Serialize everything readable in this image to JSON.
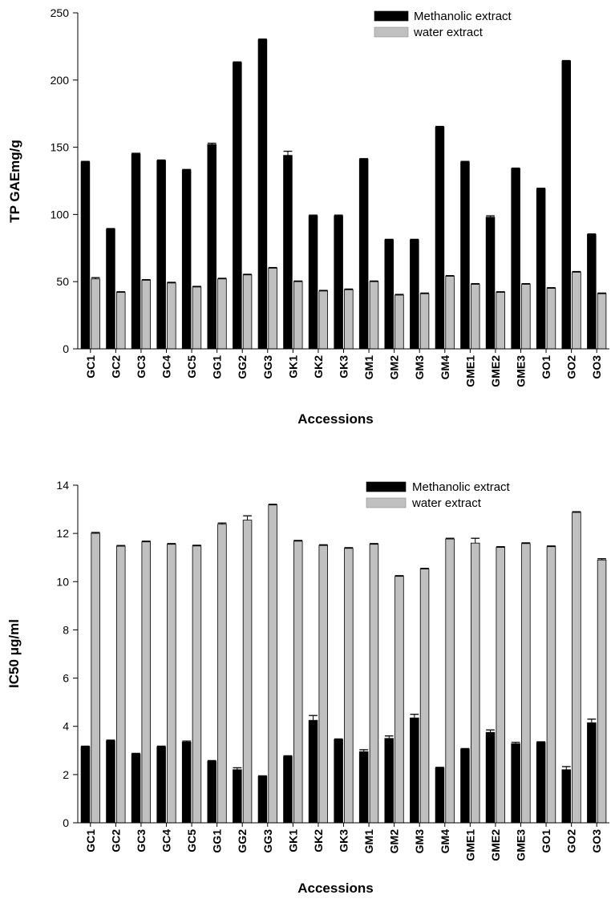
{
  "chart_data": [
    {
      "type": "bar",
      "xlabel": "Accessions",
      "ylabel": "TP GAEmg/g",
      "ylim": [
        0,
        250
      ],
      "yticks": [
        0,
        50,
        100,
        150,
        200,
        250
      ],
      "legend_position": "top-right",
      "categories": [
        "GC1",
        "GC2",
        "GC3",
        "GC4",
        "GC5",
        "GG1",
        "GG2",
        "GG3",
        "GK1",
        "GK2",
        "GK3",
        "GM1",
        "GM2",
        "GM3",
        "GM4",
        "GME1",
        "GME2",
        "GME3",
        "GO1",
        "GO2",
        "GO3"
      ],
      "series": [
        {
          "name": "Methanolic extract",
          "color": "#000000",
          "values": [
            139,
            89,
            145,
            140,
            133,
            152,
            213,
            230,
            144,
            99,
            99,
            141,
            81,
            81,
            165,
            139,
            98,
            134,
            119,
            214,
            85
          ],
          "errors": [
            0.5,
            0.5,
            0.5,
            0.5,
            0.5,
            1,
            0.5,
            0.5,
            3,
            0.5,
            0.5,
            0.5,
            0.5,
            0.5,
            0.5,
            0.5,
            1,
            0.5,
            0.5,
            0.5,
            0.5
          ]
        },
        {
          "name": "water extract",
          "color": "#c0c0c0",
          "values": [
            52,
            42,
            51,
            49,
            46,
            52,
            55,
            60,
            50,
            43,
            44,
            50,
            40,
            41,
            54,
            48,
            42,
            48,
            45,
            57,
            41
          ],
          "errors": [
            1,
            0.5,
            0.5,
            0.5,
            0.5,
            0.5,
            0.5,
            0.5,
            0.5,
            0.5,
            0.5,
            0.5,
            0.5,
            0.5,
            0.5,
            0.5,
            0.5,
            0.5,
            0.5,
            0.5,
            0.5
          ]
        }
      ]
    },
    {
      "type": "bar",
      "xlabel": "Accessions",
      "ylabel": "IC50 μg/ml",
      "ylim": [
        0,
        14
      ],
      "yticks": [
        0,
        2,
        4,
        6,
        8,
        10,
        12,
        14
      ],
      "legend_position": "top-right",
      "categories": [
        "GC1",
        "GC2",
        "GC3",
        "GC4",
        "GC5",
        "GG1",
        "GG2",
        "GG3",
        "GK1",
        "GK2",
        "GK3",
        "GM1",
        "GM2",
        "GM3",
        "GM4",
        "GME1",
        "GME2",
        "GME3",
        "GO1",
        "GO2",
        "GO3"
      ],
      "series": [
        {
          "name": "Methanolic extract",
          "color": "#000000",
          "values": [
            3.15,
            3.4,
            2.85,
            3.15,
            3.35,
            2.55,
            2.2,
            1.93,
            2.75,
            4.25,
            3.45,
            2.95,
            3.5,
            4.35,
            2.27,
            3.05,
            3.75,
            3.28,
            3.33,
            2.2,
            4.15
          ],
          "errors": [
            0.03,
            0.03,
            0.03,
            0.03,
            0.04,
            0.03,
            0.08,
            0.02,
            0.03,
            0.2,
            0.03,
            0.08,
            0.1,
            0.15,
            0.03,
            0.03,
            0.1,
            0.06,
            0.03,
            0.13,
            0.15
          ]
        },
        {
          "name": "water extract",
          "color": "#c0c0c0",
          "values": [
            12.0,
            11.47,
            11.65,
            11.55,
            11.48,
            12.38,
            12.55,
            13.18,
            11.68,
            11.5,
            11.38,
            11.55,
            10.22,
            10.52,
            11.77,
            11.6,
            11.42,
            11.58,
            11.45,
            12.87,
            10.9
          ],
          "errors": [
            0.04,
            0.03,
            0.03,
            0.03,
            0.03,
            0.05,
            0.18,
            0.03,
            0.03,
            0.03,
            0.03,
            0.03,
            0.03,
            0.03,
            0.03,
            0.2,
            0.03,
            0.03,
            0.03,
            0.03,
            0.05
          ]
        }
      ]
    }
  ]
}
